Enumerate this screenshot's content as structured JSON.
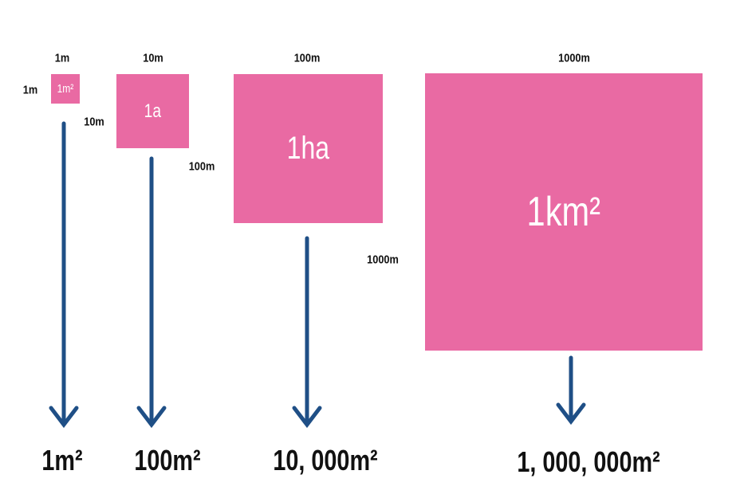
{
  "colors": {
    "square": "#e96aa3",
    "arrow": "#1f4f86"
  },
  "units": [
    {
      "side_top": "1m",
      "side_left": "1m",
      "inner": "1m²",
      "area": "1m²"
    },
    {
      "side_top": "10m",
      "side_left": "10m",
      "inner": "1a",
      "area": "100m²"
    },
    {
      "side_top": "100m",
      "side_left": "100m",
      "inner": "1ha",
      "area": "10, 000m²"
    },
    {
      "side_top": "1000m",
      "side_left": "1000m",
      "inner": "1km²",
      "area": "1, 000, 000m²"
    }
  ]
}
